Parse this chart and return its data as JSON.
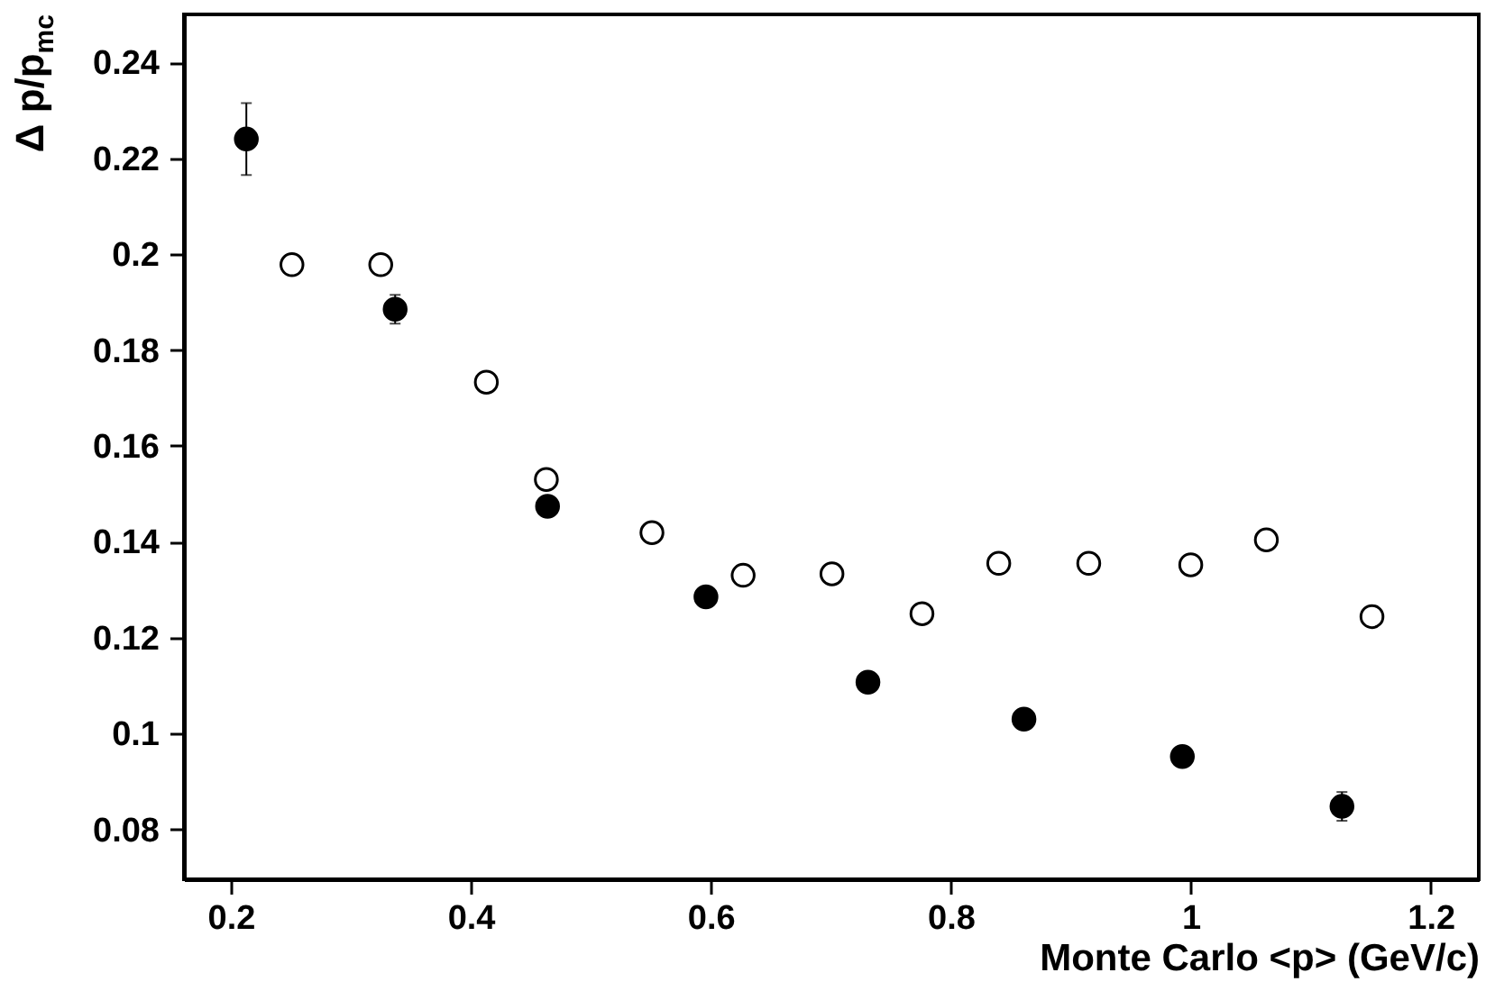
{
  "chart_data": {
    "type": "scatter",
    "xlabel": "Monte Carlo <p> (GeV/c)",
    "ylabel": "Δ p/p$_{mc}$",
    "xlim": [
      0.161,
      1.24
    ],
    "ylim": [
      0.0696,
      0.25
    ],
    "xticks": [
      0.2,
      0.4,
      0.6,
      0.8,
      1,
      1.2
    ],
    "yticks": [
      0.08,
      0.1,
      0.12,
      0.14,
      0.16,
      0.18,
      0.2,
      0.22,
      0.24
    ],
    "grid": false,
    "series": [
      {
        "color": "#000000",
        "marker": "circle",
        "x": [
          0.213,
          0.337,
          0.464,
          0.596,
          0.731,
          0.861,
          0.993,
          1.126
        ],
        "values": [
          0.224,
          0.1885,
          0.1474,
          0.1285,
          0.1107,
          0.103,
          0.0952,
          0.0848
        ],
        "errors": [
          0.0075,
          0.003,
          0.002,
          0.0015,
          0.001,
          0.002,
          0.002,
          0.003
        ]
      },
      {
        "color": "#ffffff",
        "marker": "circle",
        "x": [
          0.251,
          0.325,
          0.413,
          0.463,
          0.551,
          0.627,
          0.701,
          0.776,
          0.84,
          0.915,
          1.0,
          1.063,
          1.151
        ],
        "values": [
          0.1978,
          0.1978,
          0.1733,
          0.153,
          0.1419,
          0.133,
          0.1333,
          0.125,
          0.1355,
          0.1355,
          0.1352,
          0.1404,
          0.1244
        ]
      }
    ]
  }
}
